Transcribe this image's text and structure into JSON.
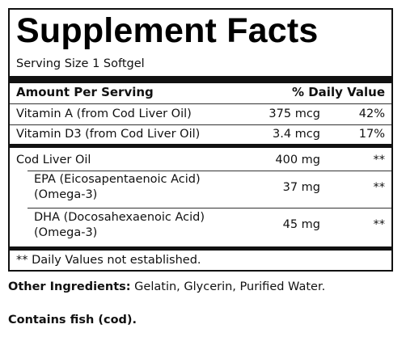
{
  "title": "Supplement Facts",
  "serving_size": "Serving Size 1 Softgel",
  "header": {
    "amount_label": "Amount Per Serving",
    "dv_label": "% Daily Value"
  },
  "rows": [
    {
      "name": "Vitamin A (from Cod Liver Oil)",
      "amount": "375 mcg",
      "dv": "42%"
    },
    {
      "name": "Vitamin D3 (from Cod Liver Oil)",
      "amount": "3.4 mcg",
      "dv": "17%"
    },
    {
      "name": "Cod Liver Oil",
      "amount": "400 mg",
      "dv": "**"
    },
    {
      "name_line1": "EPA (Eicosapentaenoic Acid)",
      "name_line2": "(Omega-3)",
      "amount": "37 mg",
      "dv": "**"
    },
    {
      "name_line1": "DHA (Docosahexaenoic Acid)",
      "name_line2": "(Omega-3)",
      "amount": "45 mg",
      "dv": "**"
    }
  ],
  "footnote": "** Daily Values not established.",
  "other_ingredients": {
    "label": "Other Ingredients:",
    "text": " Gelatin, Glycerin, Purified Water."
  },
  "contains": "Contains fish (cod)."
}
